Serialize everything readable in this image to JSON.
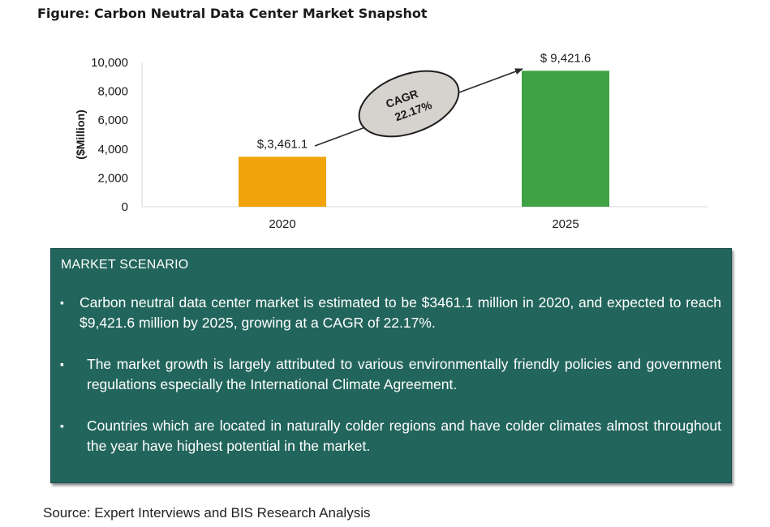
{
  "figure_title": "Figure: Carbon Neutral Data Center Market Snapshot",
  "chart_data": {
    "type": "bar",
    "categories": [
      "2020",
      "2025"
    ],
    "values": [
      3461.1,
      9421.6
    ],
    "data_labels": [
      "$,3,461.1",
      "$ 9,421.6"
    ],
    "bar_colors": [
      "#f0a30a",
      "#3fa245"
    ],
    "ylabel": "($Million)",
    "ylim": [
      0,
      10000
    ],
    "yticks": [
      0,
      2000,
      4000,
      6000,
      8000,
      10000
    ],
    "ytick_labels": [
      "0",
      "2,000",
      "4,000",
      "6,000",
      "8,000",
      "10,000"
    ],
    "grid": false,
    "annotation": {
      "line1": "CAGR",
      "line2": "22.17%"
    }
  },
  "scenario": {
    "heading": "MARKET SCENARIO",
    "bullet_glyph": "▪",
    "bullets": [
      "Carbon neutral data center market is estimated to be $3461.1 million in 2020, and expected to reach $9,421.6 million by 2025, growing at a CAGR of 22.17%.",
      "The market growth is largely attributed to various environmentally friendly policies and government regulations especially the International Climate Agreement.",
      "Countries which are located in naturally colder regions and have colder climates almost throughout the year have highest potential in the market."
    ]
  },
  "source": "Source: Expert Interviews and BIS Research Analysis"
}
